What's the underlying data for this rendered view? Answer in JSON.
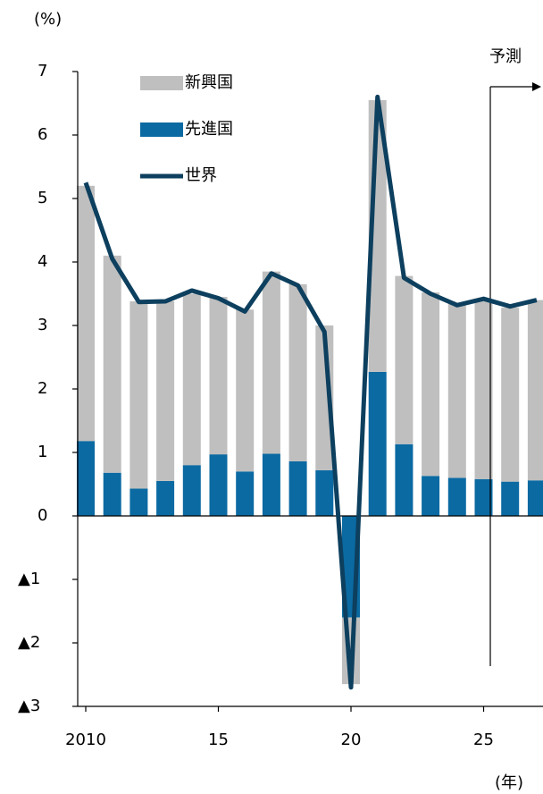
{
  "chart_data": {
    "type": "bar",
    "y_axis_label": "(%)",
    "x_axis_label": "(年)",
    "annotation": "予測",
    "x": [
      2010,
      2011,
      2012,
      2013,
      2014,
      2015,
      2016,
      2017,
      2018,
      2019,
      2020,
      2021,
      2022,
      2023,
      2024,
      2025,
      2026,
      2027
    ],
    "xticks": [
      2010,
      {
        "value": 2015,
        "label": "15"
      },
      {
        "value": 2020,
        "label": "20"
      },
      {
        "value": 2025,
        "label": "25"
      }
    ],
    "ylim": [
      -3,
      7
    ],
    "yticks": [
      {
        "value": -3,
        "label": "▲3"
      },
      {
        "value": -2,
        "label": "▲2"
      },
      {
        "value": -1,
        "label": "▲1"
      },
      0,
      1,
      2,
      3,
      4,
      5,
      6,
      7
    ],
    "stacked": true,
    "series": [
      {
        "name": "新興国",
        "type": "bar",
        "color": "#bfbfbf",
        "values": [
          4.02,
          3.42,
          2.95,
          2.83,
          2.7,
          2.48,
          2.55,
          2.87,
          2.79,
          2.28,
          -1.05,
          4.28,
          2.65,
          2.89,
          2.75,
          2.82,
          2.74,
          2.84
        ]
      },
      {
        "name": "先進国",
        "type": "bar",
        "color": "#0b6aa2",
        "values": [
          1.18,
          0.68,
          0.43,
          0.55,
          0.8,
          0.97,
          0.7,
          0.98,
          0.86,
          0.72,
          -1.6,
          2.27,
          1.13,
          0.63,
          0.6,
          0.58,
          0.54,
          0.56
        ]
      },
      {
        "name": "世界",
        "type": "line",
        "color": "#0d3f5e",
        "values": [
          5.25,
          4.05,
          3.37,
          3.38,
          3.55,
          3.43,
          3.22,
          3.82,
          3.63,
          2.9,
          -2.7,
          6.6,
          3.75,
          3.5,
          3.32,
          3.42,
          3.3,
          3.4
        ]
      }
    ]
  }
}
